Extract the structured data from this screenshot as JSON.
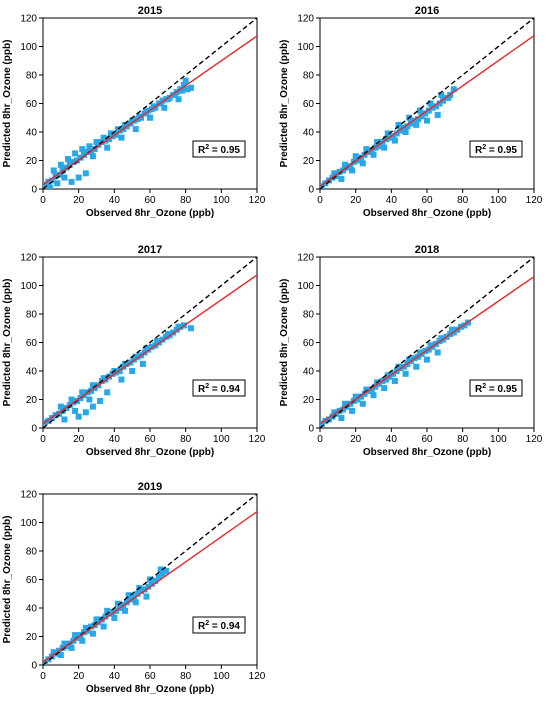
{
  "figure": {
    "xlabel": "Observed 8hr_Ozone (ppb)",
    "ylabel": "Predicted 8hr_Ozone (ppb)",
    "r2_prefix": "R",
    "r2_sup": "2",
    "marker_color": "#29a8e8",
    "fit_color": "#e8262a",
    "reference_color": "#000000",
    "tick_values": [
      0,
      20,
      40,
      60,
      80,
      100,
      120
    ]
  },
  "chart_data": [
    {
      "type": "scatter",
      "title": "2015",
      "r2_value": "0.95",
      "xlim": [
        0,
        120
      ],
      "ylim": [
        0,
        120
      ],
      "xticks": [
        0,
        20,
        40,
        60,
        80,
        100,
        120
      ],
      "yticks": [
        0,
        20,
        40,
        60,
        80,
        100,
        120
      ],
      "fit_line": {
        "slope": 0.87,
        "intercept": 3
      },
      "reference_line": {
        "slope": 1,
        "intercept": 0
      },
      "x": [
        1,
        3,
        5,
        7,
        9,
        11,
        13,
        15,
        17,
        19,
        21,
        23,
        25,
        27,
        29,
        31,
        33,
        35,
        37,
        39,
        41,
        43,
        45,
        47,
        49,
        51,
        53,
        55,
        57,
        59,
        61,
        63,
        65,
        67,
        69,
        71,
        73,
        75,
        77,
        79,
        81,
        83,
        6,
        10,
        14,
        18,
        22,
        26,
        30,
        34,
        38,
        42,
        46,
        50,
        54,
        58,
        62,
        66,
        70,
        74,
        78,
        16,
        20,
        24,
        4,
        8,
        12,
        28,
        36,
        44,
        52,
        60,
        68,
        76,
        80
      ],
      "y": [
        3,
        5,
        6,
        9,
        10,
        13,
        15,
        17,
        19,
        20,
        22,
        24,
        26,
        27,
        28,
        31,
        33,
        34,
        35,
        37,
        38,
        41,
        42,
        44,
        46,
        48,
        49,
        50,
        53,
        55,
        56,
        57,
        60,
        62,
        63,
        64,
        66,
        68,
        70,
        73,
        70,
        71,
        13,
        17,
        21,
        25,
        28,
        30,
        33,
        36,
        39,
        42,
        45,
        48,
        51,
        54,
        58,
        60,
        63,
        66,
        69,
        5,
        8,
        11,
        1,
        4,
        8,
        23,
        29,
        36,
        42,
        50,
        57,
        63,
        76
      ]
    },
    {
      "type": "scatter",
      "title": "2016",
      "r2_value": "0.95",
      "xlim": [
        0,
        120
      ],
      "ylim": [
        0,
        120
      ],
      "xticks": [
        0,
        20,
        40,
        60,
        80,
        100,
        120
      ],
      "yticks": [
        0,
        20,
        40,
        60,
        80,
        100,
        120
      ],
      "fit_line": {
        "slope": 0.88,
        "intercept": 2
      },
      "reference_line": {
        "slope": 1,
        "intercept": 0
      },
      "x": [
        1,
        3,
        5,
        7,
        9,
        11,
        13,
        15,
        17,
        19,
        21,
        23,
        25,
        27,
        29,
        31,
        33,
        35,
        37,
        39,
        41,
        43,
        45,
        47,
        49,
        51,
        53,
        55,
        57,
        59,
        61,
        63,
        65,
        67,
        69,
        71,
        73,
        75,
        8,
        14,
        20,
        26,
        32,
        38,
        44,
        50,
        56,
        62,
        68,
        12,
        18,
        24,
        30,
        36,
        42,
        48,
        54,
        60,
        66,
        72
      ],
      "y": [
        2,
        4,
        6,
        8,
        9,
        12,
        13,
        15,
        16,
        19,
        20,
        22,
        24,
        26,
        27,
        29,
        30,
        33,
        35,
        36,
        37,
        39,
        41,
        43,
        44,
        46,
        48,
        49,
        51,
        53,
        55,
        57,
        58,
        60,
        62,
        64,
        66,
        70,
        11,
        17,
        23,
        28,
        33,
        39,
        45,
        50,
        55,
        60,
        66,
        7,
        13,
        18,
        24,
        29,
        34,
        40,
        45,
        48,
        52,
        64
      ]
    },
    {
      "type": "scatter",
      "title": "2017",
      "r2_value": "0.94",
      "xlim": [
        0,
        120
      ],
      "ylim": [
        0,
        120
      ],
      "xticks": [
        0,
        20,
        40,
        60,
        80,
        100,
        120
      ],
      "yticks": [
        0,
        20,
        40,
        60,
        80,
        100,
        120
      ],
      "fit_line": {
        "slope": 0.87,
        "intercept": 3
      },
      "reference_line": {
        "slope": 1,
        "intercept": 0
      },
      "x": [
        1,
        3,
        5,
        7,
        9,
        11,
        13,
        15,
        17,
        19,
        21,
        23,
        25,
        27,
        29,
        31,
        33,
        35,
        37,
        39,
        41,
        43,
        45,
        47,
        49,
        51,
        53,
        55,
        57,
        59,
        61,
        63,
        65,
        67,
        69,
        71,
        73,
        75,
        77,
        79,
        83,
        10,
        16,
        22,
        28,
        34,
        40,
        46,
        52,
        58,
        64,
        70,
        76,
        20,
        24,
        28,
        32,
        36,
        12,
        18,
        26,
        44,
        50,
        56
      ],
      "y": [
        4,
        5,
        7,
        9,
        10,
        12,
        14,
        16,
        18,
        19,
        21,
        23,
        25,
        26,
        28,
        30,
        33,
        34,
        36,
        38,
        39,
        40,
        43,
        45,
        46,
        48,
        50,
        51,
        53,
        55,
        57,
        58,
        60,
        62,
        64,
        65,
        67,
        69,
        71,
        72,
        70,
        15,
        20,
        25,
        30,
        35,
        40,
        45,
        50,
        56,
        61,
        66,
        71,
        8,
        11,
        15,
        19,
        25,
        6,
        12,
        20,
        34,
        40,
        45
      ]
    },
    {
      "type": "scatter",
      "title": "2018",
      "r2_value": "0.95",
      "xlim": [
        0,
        120
      ],
      "ylim": [
        0,
        120
      ],
      "xticks": [
        0,
        20,
        40,
        60,
        80,
        100,
        120
      ],
      "yticks": [
        0,
        20,
        40,
        60,
        80,
        100,
        120
      ],
      "fit_line": {
        "slope": 0.86,
        "intercept": 3
      },
      "reference_line": {
        "slope": 1,
        "intercept": 0
      },
      "x": [
        1,
        3,
        5,
        7,
        9,
        11,
        13,
        15,
        17,
        19,
        21,
        23,
        25,
        27,
        29,
        31,
        33,
        35,
        37,
        39,
        41,
        43,
        45,
        47,
        49,
        51,
        53,
        55,
        57,
        59,
        61,
        63,
        65,
        67,
        69,
        71,
        73,
        75,
        77,
        79,
        81,
        83,
        8,
        14,
        20,
        26,
        32,
        38,
        44,
        50,
        56,
        62,
        68,
        74,
        12,
        18,
        24,
        30,
        36,
        42,
        48,
        54,
        60,
        66
      ],
      "y": [
        3,
        5,
        6,
        8,
        10,
        12,
        13,
        15,
        17,
        19,
        20,
        22,
        24,
        26,
        27,
        29,
        31,
        33,
        34,
        36,
        38,
        40,
        42,
        43,
        45,
        47,
        49,
        50,
        52,
        54,
        55,
        57,
        59,
        61,
        62,
        64,
        66,
        67,
        69,
        71,
        72,
        74,
        11,
        17,
        22,
        27,
        32,
        37,
        43,
        48,
        53,
        58,
        63,
        69,
        7,
        12,
        17,
        23,
        28,
        33,
        38,
        43,
        48,
        53
      ]
    },
    {
      "type": "scatter",
      "title": "2019",
      "r2_value": "0.94",
      "xlim": [
        0,
        120
      ],
      "ylim": [
        0,
        120
      ],
      "xticks": [
        0,
        20,
        40,
        60,
        80,
        100,
        120
      ],
      "yticks": [
        0,
        20,
        40,
        60,
        80,
        100,
        120
      ],
      "fit_line": {
        "slope": 0.88,
        "intercept": 2
      },
      "reference_line": {
        "slope": 1,
        "intercept": 0
      },
      "x": [
        1,
        3,
        5,
        7,
        9,
        11,
        13,
        15,
        17,
        19,
        21,
        23,
        25,
        27,
        29,
        31,
        33,
        35,
        37,
        39,
        41,
        43,
        45,
        47,
        49,
        51,
        53,
        55,
        57,
        59,
        61,
        63,
        65,
        67,
        69,
        6,
        12,
        18,
        24,
        30,
        36,
        42,
        48,
        54,
        60,
        66,
        10,
        16,
        22,
        28,
        34,
        40,
        46,
        52,
        58
      ],
      "y": [
        2,
        4,
        6,
        8,
        10,
        12,
        13,
        15,
        17,
        19,
        21,
        23,
        24,
        27,
        28,
        30,
        32,
        34,
        36,
        37,
        38,
        40,
        42,
        44,
        46,
        48,
        50,
        52,
        53,
        55,
        57,
        59,
        62,
        64,
        66,
        9,
        15,
        21,
        26,
        32,
        38,
        43,
        49,
        54,
        60,
        67,
        7,
        12,
        17,
        22,
        27,
        33,
        38,
        44,
        48
      ]
    }
  ]
}
